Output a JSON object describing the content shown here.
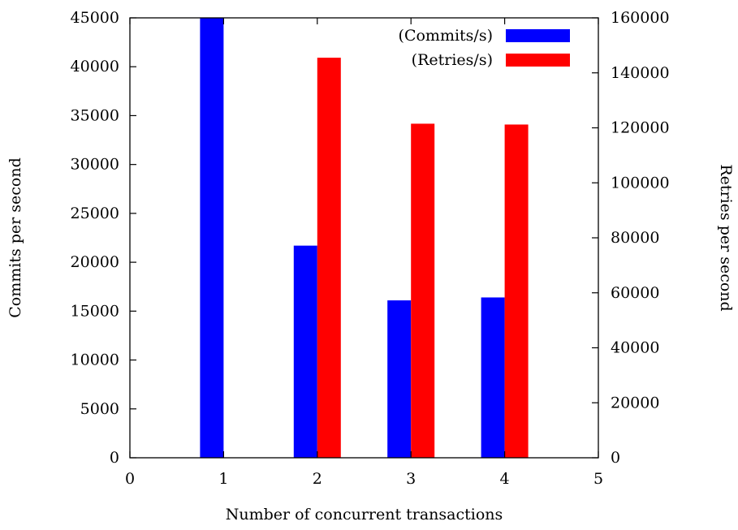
{
  "chart_data": {
    "type": "bar",
    "xlabel": "Number of concurrent transactions",
    "ylabel": "Commits per second",
    "y2label": "Retries per second",
    "xlim": [
      0,
      5
    ],
    "x_ticks": [
      0,
      1,
      2,
      3,
      4,
      5
    ],
    "ylim": [
      0,
      45000
    ],
    "y_ticks": [
      0,
      5000,
      10000,
      15000,
      20000,
      25000,
      30000,
      35000,
      40000,
      45000
    ],
    "y2lim": [
      0,
      160000
    ],
    "y2_ticks": [
      0,
      20000,
      40000,
      60000,
      80000,
      100000,
      120000,
      140000,
      160000
    ],
    "grid": false,
    "legend_position": "top-right",
    "series": [
      {
        "name": "(Commits/s)",
        "axis": "left",
        "color": "#0000ff",
        "x": [
          1,
          2,
          3,
          4
        ],
        "values": [
          45000,
          21700,
          16100,
          16400
        ]
      },
      {
        "name": "(Retries/s)",
        "axis": "right",
        "color": "#ff0000",
        "x": [
          1,
          2,
          3,
          4
        ],
        "values": [
          0,
          145500,
          121500,
          121200
        ]
      }
    ]
  }
}
